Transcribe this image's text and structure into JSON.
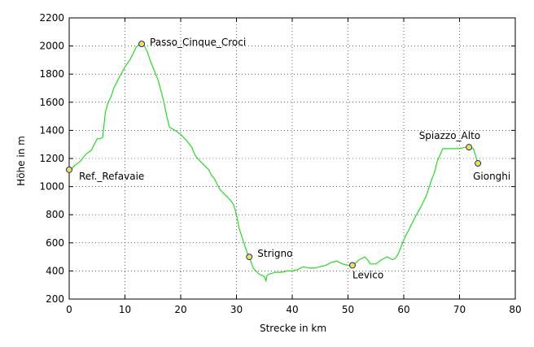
{
  "chart_data": {
    "type": "line",
    "title": "",
    "xlabel": "Strecke in km",
    "ylabel": "Höhe in m",
    "xlim": [
      0,
      80
    ],
    "ylim": [
      200,
      2200
    ],
    "xticks": [
      0,
      10,
      20,
      30,
      40,
      50,
      60,
      70,
      80
    ],
    "yticks": [
      200,
      400,
      600,
      800,
      1000,
      1200,
      1400,
      1600,
      1800,
      2000,
      2200
    ],
    "grid": true,
    "line_color": "#22dd22",
    "series": [
      {
        "x": [
          0,
          0.5,
          1,
          2,
          3,
          4,
          4.5,
          5,
          5.5,
          6,
          6.5,
          7,
          7.5,
          8,
          9,
          10,
          11,
          11.5,
          12,
          12.5,
          13,
          13.5,
          14,
          14.5,
          15,
          16,
          17,
          17.5,
          18,
          19,
          20,
          21,
          22,
          22.5,
          23,
          24,
          25,
          25.5,
          26,
          26.5,
          27,
          28,
          29,
          29.5,
          30,
          30.5,
          31,
          31.5,
          32,
          32.3,
          33,
          34,
          35,
          35.3,
          35.5,
          36,
          37,
          38,
          39,
          40,
          41,
          42,
          43,
          44,
          45,
          46,
          47,
          48,
          49,
          50,
          50.8,
          51.5,
          52,
          53,
          53.5,
          54,
          55,
          56,
          57,
          58,
          58.5,
          59,
          60,
          61,
          62,
          63,
          64,
          65,
          65.5,
          66,
          67,
          68,
          69,
          70,
          71,
          71.7,
          72.5,
          73.3
        ],
        "values": [
          1120,
          1130,
          1150,
          1180,
          1230,
          1260,
          1300,
          1340,
          1340,
          1350,
          1530,
          1600,
          1640,
          1700,
          1780,
          1850,
          1910,
          1950,
          1990,
          2010,
          2015,
          2000,
          1960,
          1900,
          1850,
          1750,
          1600,
          1500,
          1420,
          1400,
          1370,
          1330,
          1280,
          1230,
          1200,
          1160,
          1120,
          1080,
          1060,
          1020,
          980,
          940,
          900,
          870,
          800,
          700,
          640,
          580,
          520,
          500,
          420,
          380,
          360,
          330,
          370,
          380,
          390,
          390,
          400,
          400,
          410,
          430,
          420,
          420,
          430,
          440,
          460,
          470,
          450,
          440,
          440,
          460,
          480,
          500,
          480,
          450,
          450,
          480,
          500,
          480,
          490,
          520,
          620,
          700,
          780,
          850,
          930,
          1050,
          1100,
          1180,
          1270,
          1270,
          1270,
          1270,
          1280,
          1280,
          1270,
          1165
        ]
      }
    ],
    "waypoints": [
      {
        "name": "Ref._Refavaie",
        "x": 0,
        "y": 1120
      },
      {
        "name": "Passo_Cinque_Croci",
        "x": 13,
        "y": 2015
      },
      {
        "name": "Strigno",
        "x": 32.3,
        "y": 500
      },
      {
        "name": "Levico",
        "x": 50.8,
        "y": 440
      },
      {
        "name": "Spiazzo_Alto",
        "x": 71.7,
        "y": 1280
      },
      {
        "name": "Gionghi",
        "x": 73.3,
        "y": 1165
      }
    ]
  }
}
